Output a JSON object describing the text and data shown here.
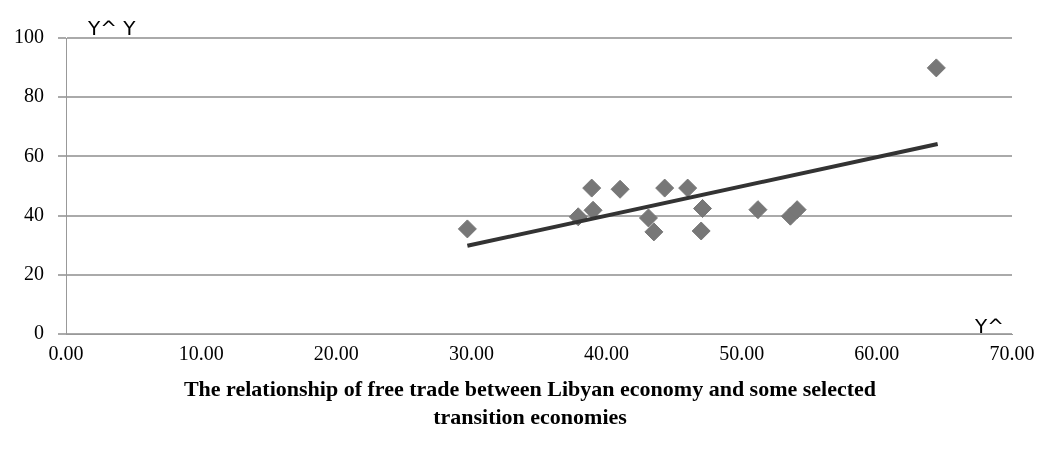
{
  "chart_data": {
    "type": "scatter",
    "title": "The relationship of free trade between Libyan economy and some selected transition economies",
    "xlabel": "Y^",
    "ylabel": "Y^ Y",
    "xlim": [
      0,
      70
    ],
    "xticks": [
      {
        "value": 0,
        "label": "0.00"
      },
      {
        "value": 10,
        "label": "10.00"
      },
      {
        "value": 20,
        "label": "20.00"
      },
      {
        "value": 30,
        "label": "30.00"
      },
      {
        "value": 40,
        "label": "40.00"
      },
      {
        "value": 50,
        "label": "50.00"
      },
      {
        "value": 60,
        "label": "60.00"
      },
      {
        "value": 70,
        "label": "70.00"
      }
    ],
    "ylim": [
      0,
      100
    ],
    "yticks": [
      0,
      20,
      40,
      60,
      80,
      100
    ],
    "grid": "y",
    "legend": false,
    "marker": "diamond",
    "series": [
      {
        "type": "scatter",
        "color": "#777777",
        "x": [
          29.7,
          37.9,
          38.9,
          39.0,
          41.0,
          43.1,
          43.5,
          44.3,
          46.0,
          47.1,
          47.0,
          51.2,
          53.6,
          54.1,
          64.4
        ],
        "values": [
          35.5,
          39.6,
          49.3,
          41.8,
          48.9,
          39.2,
          34.5,
          49.3,
          49.3,
          42.4,
          34.8,
          42.0,
          39.8,
          42.0,
          89.9
        ]
      },
      {
        "type": "line",
        "color": "#333333",
        "marker": "none",
        "x": [
          29.7,
          64.5
        ],
        "values": [
          29.8,
          64.2
        ]
      }
    ]
  }
}
